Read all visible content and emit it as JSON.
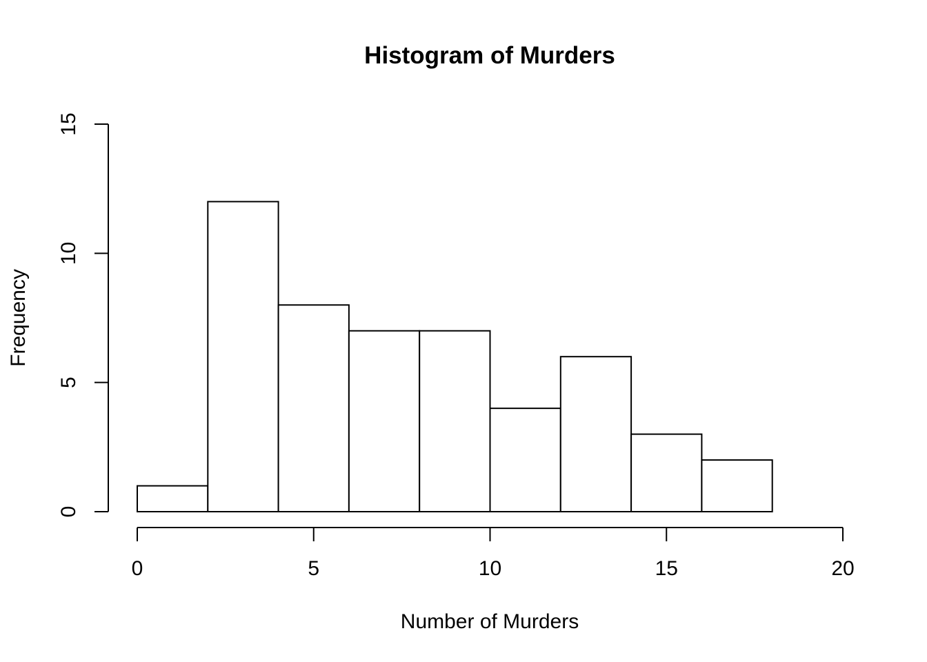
{
  "chart_data": {
    "type": "bar",
    "title": "Histogram of Murders",
    "xlabel": "Number of Murders",
    "ylabel": "Frequency",
    "bins": [
      {
        "start": 0,
        "end": 2,
        "count": 1
      },
      {
        "start": 2,
        "end": 4,
        "count": 12
      },
      {
        "start": 4,
        "end": 6,
        "count": 8
      },
      {
        "start": 6,
        "end": 8,
        "count": 7
      },
      {
        "start": 8,
        "end": 10,
        "count": 7
      },
      {
        "start": 10,
        "end": 12,
        "count": 4
      },
      {
        "start": 12,
        "end": 14,
        "count": 6
      },
      {
        "start": 14,
        "end": 16,
        "count": 3
      },
      {
        "start": 16,
        "end": 18,
        "count": 2
      }
    ],
    "xlim": [
      0,
      20
    ],
    "ylim": [
      0,
      15
    ],
    "x_ticks": [
      0,
      5,
      10,
      15,
      20
    ],
    "y_ticks": [
      0,
      5,
      10,
      15
    ],
    "grid": false,
    "colors": {
      "bar_fill": "#ffffff",
      "bar_stroke": "#000000",
      "axis": "#000000",
      "text": "#000000"
    }
  }
}
